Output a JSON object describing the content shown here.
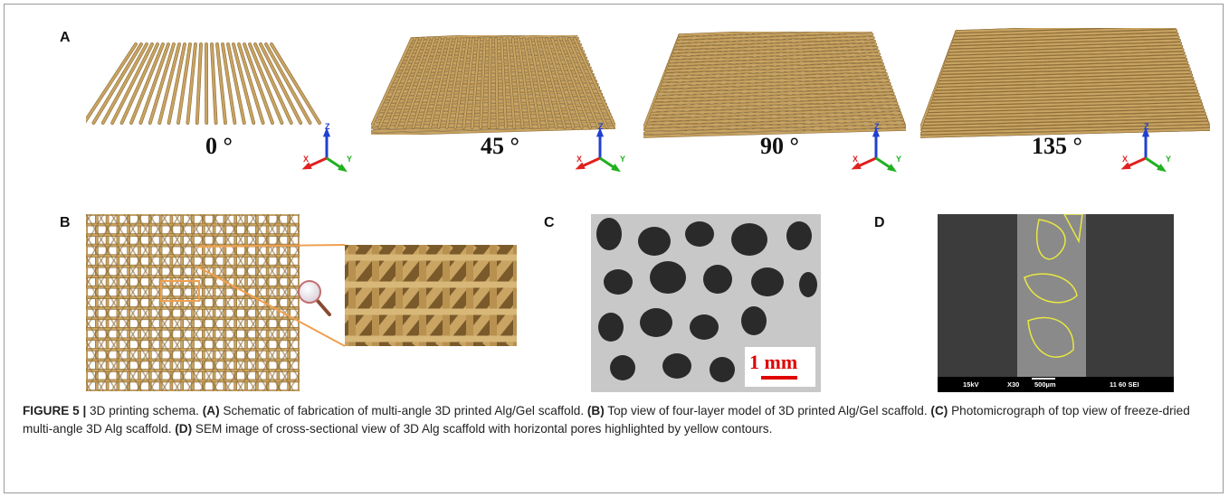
{
  "panelA": {
    "label": "A",
    "angles": [
      "0 °",
      "45 °",
      "90 °",
      "135 °"
    ],
    "axes": {
      "x": "X",
      "y": "Y",
      "z": "Z"
    }
  },
  "panelB": {
    "label": "B"
  },
  "panelC": {
    "label": "C",
    "scale": "1 mm"
  },
  "panelD": {
    "label": "D",
    "sem": {
      "voltage": "15kV",
      "mag": "X30",
      "scale": "500µm",
      "code": "11 60 SEI"
    }
  },
  "caption": {
    "fig": "FIGURE 5 |",
    "intro": " 3D printing schema. ",
    "parts": [
      {
        "tag": "(A)",
        "text": " Schematic of fabrication of multi-angle 3D printed Alg/Gel scaffold. "
      },
      {
        "tag": "(B)",
        "text": " Top view of four-layer model of 3D printed Alg/Gel scaffold. "
      },
      {
        "tag": "(C)",
        "text": " Photomicrograph of top view of freeze-dried multi-angle 3D Alg scaffold. "
      },
      {
        "tag": "(D)",
        "text": " SEM image of cross-sectional view of 3D Alg scaffold with horizontal pores highlighted by yellow contours."
      }
    ]
  },
  "colors": {
    "rod": "#c9a462",
    "rodDark": "#8a6a35",
    "axisX": "#e02020",
    "axisY": "#20b020",
    "axisZ": "#2040d0",
    "scale": "#e00000",
    "contour": "#e8e840",
    "zoom": "#f0a050"
  }
}
